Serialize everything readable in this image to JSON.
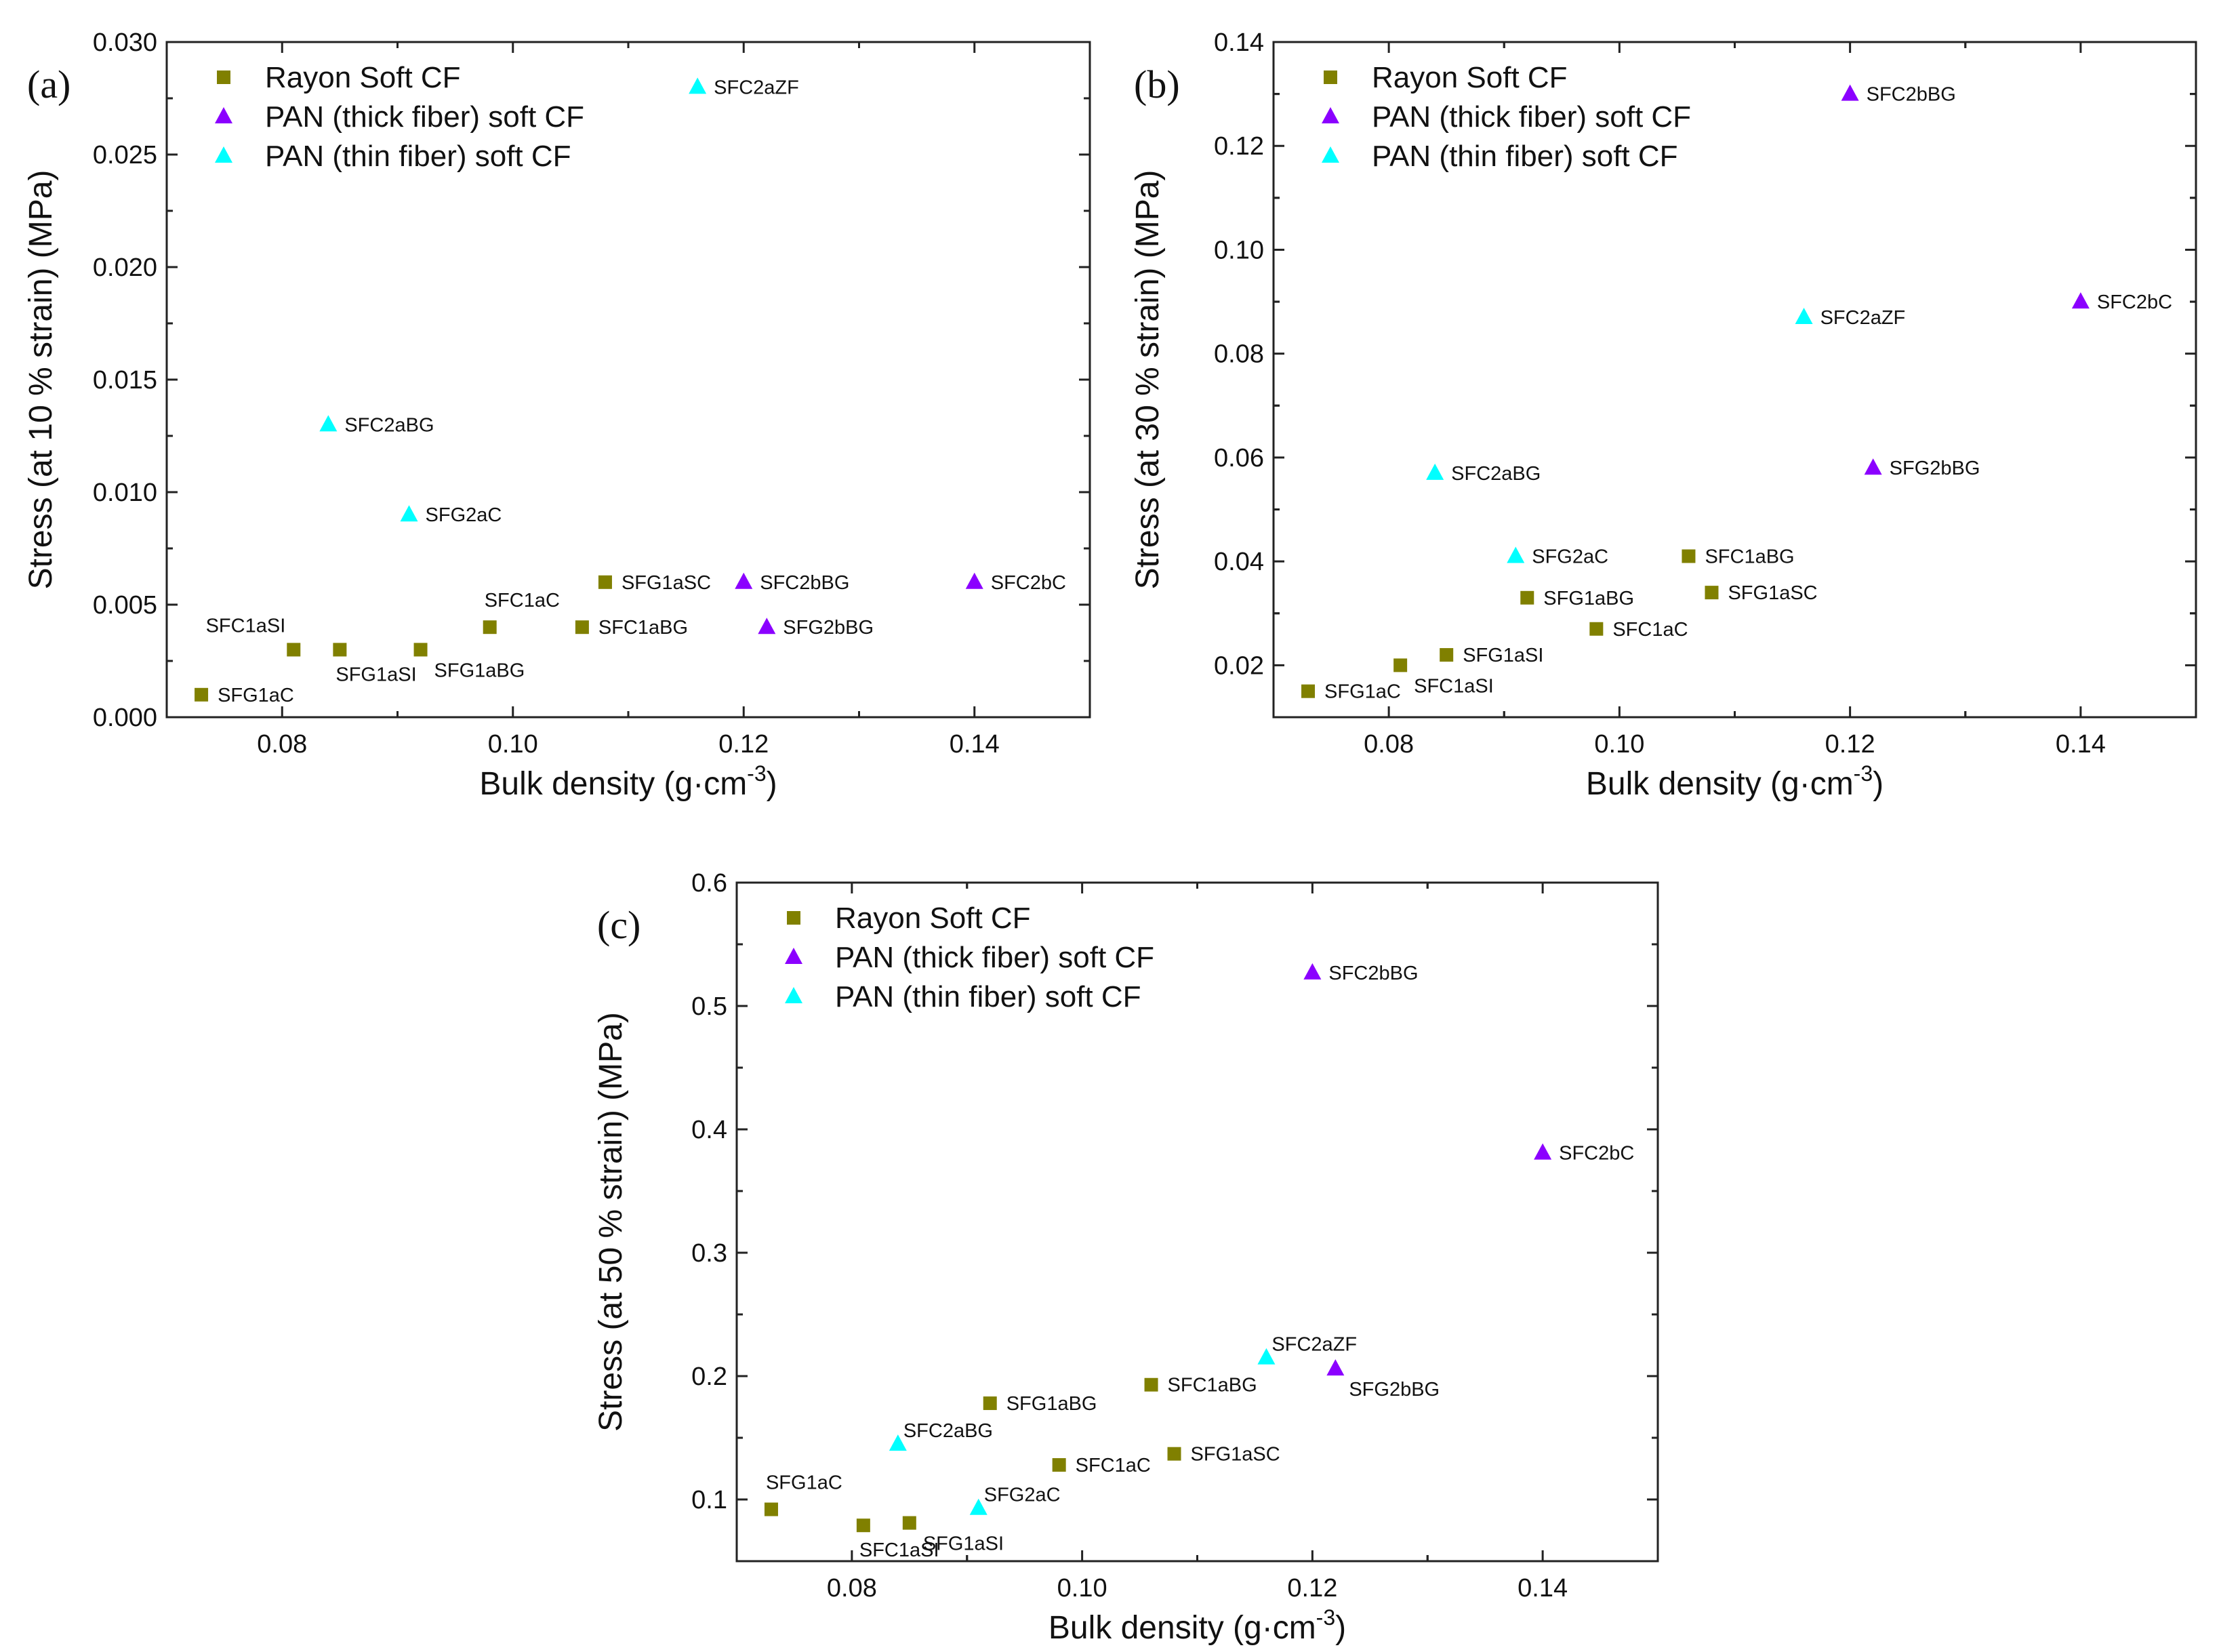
{
  "figure": {
    "colors": {
      "rayon": "#808000",
      "pan_thick": "#8B00FF",
      "pan_thin": "#00FFFF",
      "axis": "#222222"
    },
    "legend": [
      {
        "label": "Rayon Soft CF",
        "series": "rayon",
        "marker": "square"
      },
      {
        "label": "PAN (thick fiber) soft CF",
        "series": "pan_thick",
        "marker": "triangle"
      },
      {
        "label": "PAN (thin fiber) soft CF",
        "series": "pan_thin",
        "marker": "triangle"
      }
    ]
  },
  "chart_data": [
    {
      "id": "a",
      "type": "scatter",
      "panel_label": "(a)",
      "xlabel": "Bulk density (g·cm",
      "xlabel_sup": "-3",
      "xlabel_end": ")",
      "ylabel": "Stress (at 10 % strain) (MPa)",
      "xlim": [
        0.07,
        0.15
      ],
      "ylim": [
        0.0,
        0.03
      ],
      "xticks": [
        "0.08",
        "0.10",
        "0.12",
        "0.14"
      ],
      "yticks": [
        "0.000",
        "0.005",
        "0.010",
        "0.015",
        "0.020",
        "0.025",
        "0.030"
      ],
      "series": [
        {
          "name": "Rayon Soft CF",
          "key": "rayon",
          "points": [
            {
              "label": "SFG1aC",
              "x": 0.073,
              "y": 0.001,
              "pos": "r"
            },
            {
              "label": "SFC1aSI",
              "x": 0.081,
              "y": 0.003,
              "pos": "tl"
            },
            {
              "label": "SFG1aSI",
              "x": 0.085,
              "y": 0.003,
              "pos": "b"
            },
            {
              "label": "SFG1aBG",
              "x": 0.092,
              "y": 0.003,
              "pos": "br"
            },
            {
              "label": "SFC1aC",
              "x": 0.098,
              "y": 0.004,
              "pos": "t"
            },
            {
              "label": "SFC1aBG",
              "x": 0.106,
              "y": 0.004,
              "pos": "r"
            },
            {
              "label": "SFG1aSC",
              "x": 0.108,
              "y": 0.006,
              "pos": "r"
            }
          ]
        },
        {
          "name": "PAN (thick fiber) soft CF",
          "key": "pan_thick",
          "points": [
            {
              "label": "SFC2bBG",
              "x": 0.12,
              "y": 0.006,
              "pos": "r"
            },
            {
              "label": "SFG2bBG",
              "x": 0.122,
              "y": 0.004,
              "pos": "r"
            },
            {
              "label": "SFC2bC",
              "x": 0.14,
              "y": 0.006,
              "pos": "r"
            }
          ]
        },
        {
          "name": "PAN (thin fiber) soft CF",
          "key": "pan_thin",
          "points": [
            {
              "label": "SFC2aBG",
              "x": 0.084,
              "y": 0.013,
              "pos": "r"
            },
            {
              "label": "SFG2aC",
              "x": 0.091,
              "y": 0.009,
              "pos": "r"
            },
            {
              "label": "SFC2aZF",
              "x": 0.116,
              "y": 0.028,
              "pos": "r"
            }
          ]
        }
      ]
    },
    {
      "id": "b",
      "type": "scatter",
      "panel_label": "(b)",
      "xlabel": "Bulk density (g·cm",
      "xlabel_sup": "-3",
      "xlabel_end": ")",
      "ylabel": "Stress (at 30 % strain) (MPa)",
      "xlim": [
        0.07,
        0.15
      ],
      "ylim": [
        0.01,
        0.14
      ],
      "xticks": [
        "0.08",
        "0.10",
        "0.12",
        "0.14"
      ],
      "yticks": [
        "0.02",
        "0.04",
        "0.06",
        "0.08",
        "0.10",
        "0.12",
        "0.14"
      ],
      "series": [
        {
          "name": "Rayon Soft CF",
          "key": "rayon",
          "points": [
            {
              "label": "SFG1aC",
              "x": 0.073,
              "y": 0.015,
              "pos": "r"
            },
            {
              "label": "SFC1aSI",
              "x": 0.081,
              "y": 0.02,
              "pos": "br"
            },
            {
              "label": "SFG1aSI",
              "x": 0.085,
              "y": 0.022,
              "pos": "r"
            },
            {
              "label": "SFG1aBG",
              "x": 0.092,
              "y": 0.033,
              "pos": "r"
            },
            {
              "label": "SFC1aC",
              "x": 0.098,
              "y": 0.027,
              "pos": "r"
            },
            {
              "label": "SFC1aBG",
              "x": 0.106,
              "y": 0.041,
              "pos": "r"
            },
            {
              "label": "SFG1aSC",
              "x": 0.108,
              "y": 0.034,
              "pos": "r"
            }
          ]
        },
        {
          "name": "PAN (thick fiber) soft CF",
          "key": "pan_thick",
          "points": [
            {
              "label": "SFC2bBG",
              "x": 0.12,
              "y": 0.13,
              "pos": "r"
            },
            {
              "label": "SFG2bBG",
              "x": 0.122,
              "y": 0.058,
              "pos": "r"
            },
            {
              "label": "SFC2bC",
              "x": 0.14,
              "y": 0.09,
              "pos": "r"
            }
          ]
        },
        {
          "name": "PAN (thin fiber) soft CF",
          "key": "pan_thin",
          "points": [
            {
              "label": "SFC2aBG",
              "x": 0.084,
              "y": 0.057,
              "pos": "r"
            },
            {
              "label": "SFG2aC",
              "x": 0.091,
              "y": 0.041,
              "pos": "r"
            },
            {
              "label": "SFC2aZF",
              "x": 0.116,
              "y": 0.087,
              "pos": "r"
            }
          ]
        }
      ]
    },
    {
      "id": "c",
      "type": "scatter",
      "panel_label": "(c)",
      "xlabel": "Bulk density (g·cm",
      "xlabel_sup": "-3",
      "xlabel_end": ")",
      "ylabel": "Stress (at 50 % strain) (MPa)",
      "xlim": [
        0.07,
        0.15
      ],
      "ylim": [
        0.05,
        0.6
      ],
      "xticks": [
        "0.08",
        "0.10",
        "0.12",
        "0.14"
      ],
      "yticks": [
        "0.1",
        "0.2",
        "0.3",
        "0.4",
        "0.5",
        "0.6"
      ],
      "series": [
        {
          "name": "Rayon Soft CF",
          "key": "rayon",
          "points": [
            {
              "label": "SFG1aC",
              "x": 0.073,
              "y": 0.092,
              "pos": "t"
            },
            {
              "label": "SFC1aSI",
              "x": 0.081,
              "y": 0.079,
              "pos": "b"
            },
            {
              "label": "SFG1aSI",
              "x": 0.085,
              "y": 0.081,
              "pos": "br"
            },
            {
              "label": "SFG1aBG",
              "x": 0.092,
              "y": 0.178,
              "pos": "r"
            },
            {
              "label": "SFC1aC",
              "x": 0.098,
              "y": 0.128,
              "pos": "r"
            },
            {
              "label": "SFC1aBG",
              "x": 0.106,
              "y": 0.193,
              "pos": "r"
            },
            {
              "label": "SFG1aSC",
              "x": 0.108,
              "y": 0.137,
              "pos": "r"
            }
          ]
        },
        {
          "name": "PAN (thick fiber) soft CF",
          "key": "pan_thick",
          "points": [
            {
              "label": "SFC2bBG",
              "x": 0.12,
              "y": 0.527,
              "pos": "r"
            },
            {
              "label": "SFG2bBG",
              "x": 0.122,
              "y": 0.206,
              "pos": "br"
            },
            {
              "label": "SFC2bC",
              "x": 0.14,
              "y": 0.381,
              "pos": "r"
            }
          ]
        },
        {
          "name": "PAN (thin fiber) soft CF",
          "key": "pan_thin",
          "points": [
            {
              "label": "SFC2aBG",
              "x": 0.084,
              "y": 0.145,
              "pos": "tr"
            },
            {
              "label": "SFG2aC",
              "x": 0.091,
              "y": 0.093,
              "pos": "tr"
            },
            {
              "label": "SFC2aZF",
              "x": 0.116,
              "y": 0.215,
              "pos": "tr"
            }
          ]
        }
      ]
    }
  ]
}
